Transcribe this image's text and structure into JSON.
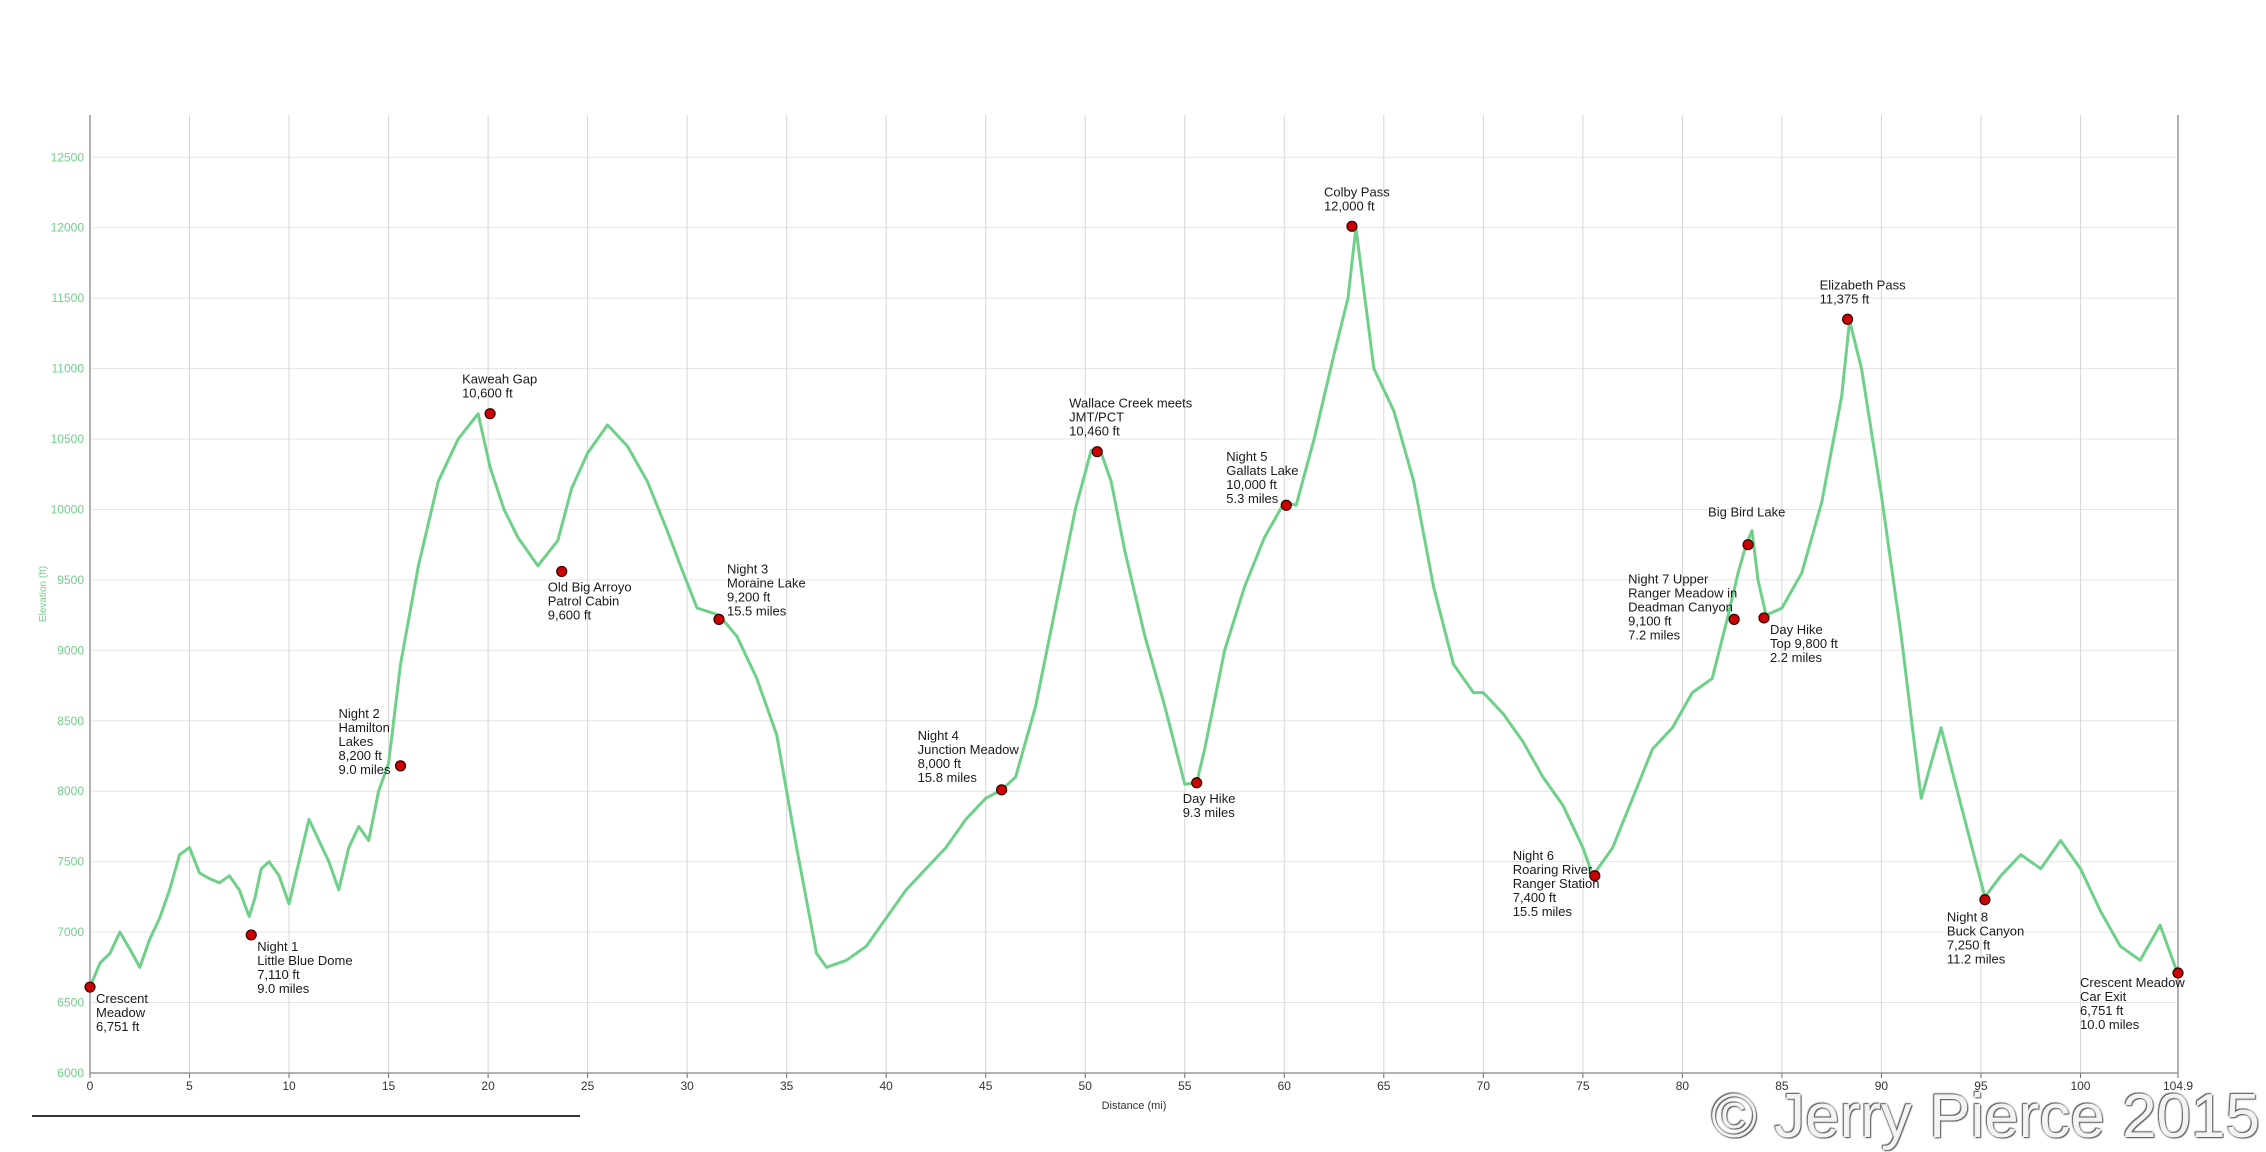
{
  "watermark": "© Jerry Pierce 2015",
  "chart_data": {
    "type": "line",
    "title": "",
    "xlabel": "Distance (mi)",
    "ylabel": "Elevation (ft)",
    "xlim": [
      0,
      104.9
    ],
    "ylim": [
      6000,
      12800
    ],
    "x_ticks": [
      "0",
      "5",
      "10",
      "15",
      "20",
      "25",
      "30",
      "35",
      "40",
      "45",
      "50",
      "55",
      "60",
      "65",
      "70",
      "75",
      "80",
      "85",
      "90",
      "95",
      "100",
      "104.9"
    ],
    "y_ticks": [
      "6000",
      "6500",
      "7000",
      "7500",
      "8000",
      "8500",
      "9000",
      "9500",
      "10000",
      "10500",
      "11000",
      "11500",
      "12000",
      "12500"
    ],
    "grid": true,
    "line_color": "#6fd08a",
    "marker_color": "#cc0000",
    "series": [
      {
        "x": [
          0,
          0.5,
          1,
          1.5,
          2,
          2.5,
          3,
          3.5,
          4,
          4.5,
          5,
          5.5,
          6,
          6.5,
          7,
          7.5,
          8,
          8.3,
          8.6,
          9,
          9.5,
          10,
          10.5,
          11,
          11.5,
          12,
          12.5,
          13,
          13.5,
          14,
          14.5,
          15,
          15.6,
          16.5,
          17.5,
          18.5,
          19.5,
          20.1,
          20.8,
          21.5,
          22.5,
          23.5,
          24.2,
          25,
          26,
          27,
          28,
          29,
          29.8,
          30.5,
          31.6,
          32.5,
          33.5,
          34.5,
          35.5,
          36.5,
          37,
          38,
          39,
          40,
          41,
          42,
          43,
          44,
          45,
          45.8,
          46.5,
          47.5,
          48.5,
          49.5,
          50.3,
          50.8,
          51.3,
          52,
          53,
          54,
          55,
          55.6,
          56,
          57,
          58,
          59,
          60,
          60.6,
          61.5,
          62.5,
          63.2,
          63.6,
          64.5,
          65.5,
          66.5,
          67.5,
          68.5,
          69.5,
          70,
          71,
          72,
          73,
          74,
          75,
          75.5,
          76.5,
          77.5,
          78.5,
          79.5,
          80.5,
          81.5,
          82.3,
          82.8,
          83.2,
          83.5,
          83.8,
          84.2,
          85,
          86,
          87,
          88,
          88.4,
          89,
          90,
          91,
          91.6,
          92,
          93,
          94,
          95.2,
          96,
          97,
          98,
          99,
          100,
          101,
          102,
          103,
          104,
          104.9
        ],
        "y": [
          6610,
          6780,
          6850,
          7000,
          6880,
          6750,
          6950,
          7100,
          7300,
          7550,
          7600,
          7420,
          7380,
          7350,
          7400,
          7300,
          7110,
          7250,
          7450,
          7500,
          7400,
          7200,
          7500,
          7800,
          7650,
          7500,
          7300,
          7600,
          7750,
          7650,
          8000,
          8200,
          8900,
          9600,
          10200,
          10500,
          10680,
          10300,
          10000,
          9800,
          9600,
          9780,
          10150,
          10400,
          10600,
          10450,
          10200,
          9850,
          9550,
          9300,
          9250,
          9100,
          8800,
          8400,
          7600,
          6850,
          6750,
          6800,
          6900,
          7100,
          7300,
          7450,
          7600,
          7800,
          7950,
          8010,
          8100,
          8600,
          9300,
          10000,
          10420,
          10400,
          10200,
          9700,
          9100,
          8600,
          8050,
          8060,
          8300,
          9000,
          9450,
          9800,
          10050,
          10030,
          10500,
          11100,
          11500,
          12000,
          11000,
          10700,
          10200,
          9450,
          8900,
          8700,
          8700,
          8550,
          8350,
          8100,
          7900,
          7600,
          7400,
          7600,
          7950,
          8300,
          8450,
          8700,
          8800,
          9250,
          9550,
          9750,
          9850,
          9500,
          9250,
          9300,
          9550,
          10050,
          10800,
          11340,
          11000,
          10100,
          9100,
          8400,
          7950,
          8450,
          7900,
          7250,
          7400,
          7550,
          7450,
          7650,
          7450,
          7150,
          6900,
          6800,
          7050,
          6700
        ]
      }
    ],
    "annotations": [
      {
        "x": 0,
        "y": 6610,
        "label": "Crescent\nMeadow\n6,751 ft",
        "pos": "br"
      },
      {
        "x": 8.1,
        "y": 6980,
        "label": "Night 1\nLittle Blue Dome\n7,110 ft\n9.0 miles",
        "pos": "br"
      },
      {
        "x": 15.6,
        "y": 8180,
        "label": "Night 2\nHamilton\nLakes\n8,200 ft\n9.0 miles",
        "pos": "tl"
      },
      {
        "x": 20.1,
        "y": 10680,
        "label": "Kaweah Gap\n10,600 ft",
        "pos": "t"
      },
      {
        "x": 23.7,
        "y": 9560,
        "label": "Old Big Arroyo\nPatrol Cabin\n9,600 ft",
        "pos": "b"
      },
      {
        "x": 31.6,
        "y": 9220,
        "label": "Night 3\nMoraine Lake\n9,200 ft\n15.5 miles",
        "pos": "tr"
      },
      {
        "x": 45.8,
        "y": 8010,
        "label": "Night 4\nJunction Meadow\n8,000 ft\n15.8 miles",
        "pos": "tl"
      },
      {
        "x": 50.6,
        "y": 10410,
        "label": "Wallace Creek meets\nJMT/PCT\n10,460 ft",
        "pos": "t"
      },
      {
        "x": 55.6,
        "y": 8060,
        "label": "Day Hike\n9.3 miles",
        "pos": "b"
      },
      {
        "x": 60.1,
        "y": 10030,
        "label": "Night 5\nGallats Lake\n10,000 ft\n5.3 miles",
        "pos": "tl"
      },
      {
        "x": 63.4,
        "y": 12010,
        "label": "Colby Pass\n12,000 ft",
        "pos": "t"
      },
      {
        "x": 75.6,
        "y": 7400,
        "label": "Night 6\nRoaring River\nRanger Station\n7,400 ft\n15.5 miles",
        "pos": "bl"
      },
      {
        "x": 82.6,
        "y": 9220,
        "label": "Night 7 Upper\nRanger Meadow in\nDeadman Canyon\n9,100 ft\n7.2 miles",
        "pos": "tl"
      },
      {
        "x": 83.3,
        "y": 9750,
        "label": "Big Bird Lake",
        "pos": "t"
      },
      {
        "x": 84.1,
        "y": 9230,
        "label": "Day Hike\nTop 9,800 ft\n2.2 miles",
        "pos": "br"
      },
      {
        "x": 88.3,
        "y": 11350,
        "label": "Elizabeth Pass\n11,375 ft",
        "pos": "t"
      },
      {
        "x": 95.2,
        "y": 7230,
        "label": "Night 8\nBuck Canyon\n7,250 ft\n11.2 miles",
        "pos": "bl"
      },
      {
        "x": 104.9,
        "y": 6710,
        "label": "Crescent Meadow\nCar Exit\n6,751 ft\n10.0 miles",
        "pos": "bl"
      }
    ]
  }
}
